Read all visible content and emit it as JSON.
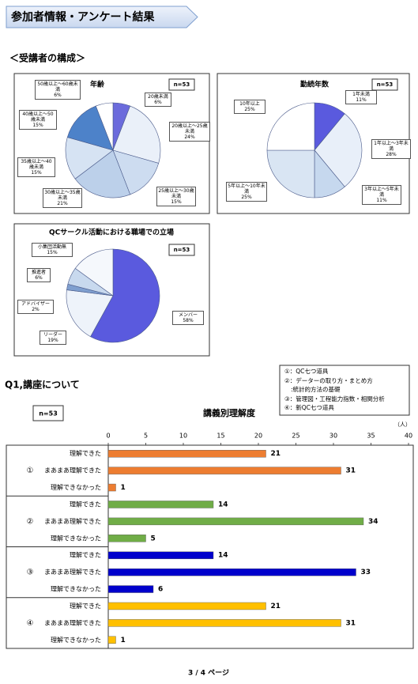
{
  "header": {
    "title": "参加者情報・アンケート結果"
  },
  "section": "＜受講者の構成＞",
  "q1_title": "Q1,講座について",
  "notes": [
    "①：QC七つ道具",
    "②：データーの取り方・まとめ方",
    ":統計的方法の基礎",
    "③：管理図・工程能力指数・相関分析",
    "④：新QC七つ道具"
  ],
  "footer": "3 / 4 ページ",
  "chart_data": [
    {
      "type": "pie",
      "title": "年齢",
      "n_label": "n=53",
      "labels": [
        "20歳未満",
        "20歳以上～25歳未満",
        "25歳以上～30歳未満",
        "30歳以上～35歳未満",
        "35歳以上～40歳未満",
        "40歳以上～50歳未満",
        "50歳以上～60歳未満"
      ],
      "values": [
        6,
        24,
        15,
        21,
        15,
        15,
        6
      ],
      "value_labels": [
        "6%",
        "24%",
        "15%",
        "21%",
        "15%",
        "15%",
        "6%"
      ],
      "colors": [
        "#6b6bdc",
        "#eaf0f9",
        "#cddcf0",
        "#bcd0ea",
        "#d6e3f3",
        "#4d82c9",
        "#ffffff"
      ]
    },
    {
      "type": "pie",
      "title": "勤続年数",
      "n_label": "n=53",
      "labels": [
        "1年未満",
        "1年以上～3年未満",
        "3年以上～5年未満",
        "5年以上～10年未満",
        "10年以上"
      ],
      "values": [
        11,
        28,
        11,
        25,
        25
      ],
      "value_labels": [
        "11%",
        "28%",
        "11%",
        "25%",
        "25%"
      ],
      "colors": [
        "#5a5ade",
        "#e8eff9",
        "#c6d8ee",
        "#d9e5f3",
        "#ffffff"
      ]
    },
    {
      "type": "pie",
      "title": "QCサークル活動における職場での立場",
      "n_label": "n=53",
      "labels": [
        "メンバー",
        "リーダー",
        "アドバイザー",
        "推進者",
        "小集団活動無"
      ],
      "values": [
        58,
        19,
        2,
        6,
        15
      ],
      "value_labels": [
        "58%",
        "19%",
        "2%",
        "6%",
        "15%"
      ],
      "colors": [
        "#5a5ade",
        "#eef3fa",
        "#7f9fcf",
        "#c8d9ee",
        "#f5f8fc"
      ]
    },
    {
      "type": "bar",
      "title": "講義別理解度",
      "n_label": "n=53",
      "unit_label": "（人）",
      "xlim": [
        0,
        40
      ],
      "xticks": [
        0,
        5,
        10,
        15,
        20,
        25,
        30,
        35,
        40
      ],
      "groups": [
        {
          "label": "①",
          "color": "#ed7d31",
          "categories": [
            "理解できた",
            "まあまあ理解できた",
            "理解できなかった"
          ],
          "values": [
            21,
            31,
            1
          ]
        },
        {
          "label": "②",
          "color": "#70ad47",
          "categories": [
            "理解できた",
            "まあまあ理解できた",
            "理解できなかった"
          ],
          "values": [
            14,
            34,
            5
          ]
        },
        {
          "label": "③",
          "color": "#0000cc",
          "categories": [
            "理解できた",
            "まあまあ理解できた",
            "理解できなかった"
          ],
          "values": [
            14,
            33,
            6
          ]
        },
        {
          "label": "④",
          "color": "#ffc000",
          "categories": [
            "理解できた",
            "まあまあ理解できた",
            "理解できなかった"
          ],
          "values": [
            21,
            31,
            1
          ]
        }
      ]
    }
  ]
}
